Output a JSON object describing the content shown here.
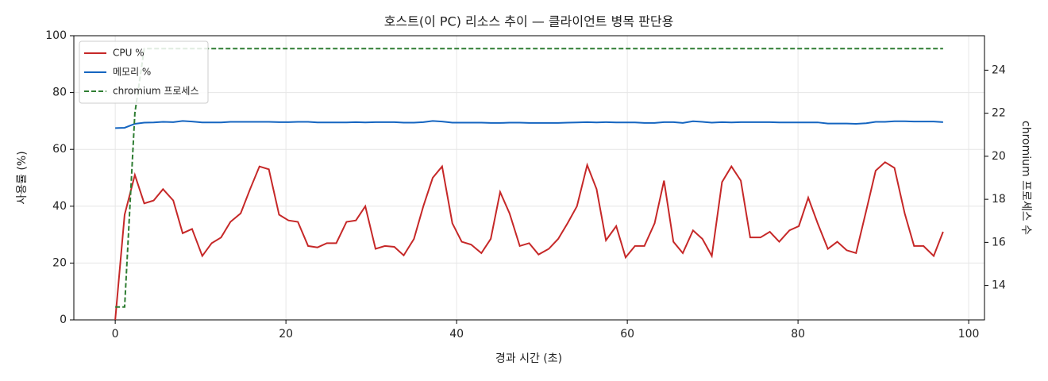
{
  "chart_data": {
    "type": "line",
    "title": "호스트(이 PC) 리소스 추이 — 클라이언트 병목 판단용",
    "x_label": "경과 시간 (초)",
    "y_label": "사용률 (%)",
    "y2_label": "chromium 프로세스 수",
    "x": [
      0,
      1.1,
      2.3,
      3.4,
      4.5,
      5.6,
      6.8,
      7.9,
      9.0,
      10.2,
      11.3,
      12.4,
      13.5,
      14.7,
      15.8,
      16.9,
      18.0,
      19.2,
      20.3,
      21.4,
      22.6,
      23.7,
      24.8,
      25.9,
      27.1,
      28.2,
      29.3,
      30.5,
      31.6,
      32.7,
      33.8,
      35.0,
      36.1,
      37.2,
      38.3,
      39.5,
      40.6,
      41.7,
      42.9,
      44.0,
      45.1,
      46.2,
      47.4,
      48.5,
      49.6,
      50.8,
      51.9,
      53.0,
      54.1,
      55.3,
      56.4,
      57.5,
      58.7,
      59.8,
      60.9,
      62.0,
      63.2,
      64.3,
      65.4,
      66.5,
      67.7,
      68.8,
      69.9,
      71.1,
      72.2,
      73.3,
      74.4,
      75.6,
      76.7,
      77.8,
      79.0,
      80.1,
      81.2,
      82.3,
      83.5,
      84.6,
      85.7,
      86.8,
      88.0,
      89.1,
      90.2,
      91.3,
      92.5,
      93.6,
      94.7,
      95.9,
      97.0
    ],
    "series": [
      {
        "name": "CPU %",
        "color": "#c62828",
        "dash": false,
        "values": [
          0,
          37,
          51,
          41,
          42,
          46,
          42,
          30.5,
          32,
          22.5,
          27,
          29,
          34.5,
          37.5,
          46,
          54,
          53,
          37,
          35,
          34.5,
          26,
          25.5,
          27,
          27,
          34.5,
          35,
          40,
          25,
          26,
          25.7,
          22.7,
          28.5,
          40,
          50,
          54,
          34,
          27.5,
          26.5,
          23.5,
          28.5,
          45,
          37.5,
          26,
          27,
          23,
          25,
          28.5,
          34,
          40,
          54.5,
          46,
          28,
          33,
          22,
          26,
          26,
          34,
          49,
          27.5,
          23.5,
          31.5,
          28.5,
          22.5,
          48.5,
          54,
          49,
          29,
          29,
          31,
          27.5,
          31.5,
          33,
          43,
          34,
          25,
          27.5,
          24.5,
          23.5,
          38.5,
          52.5,
          55.5,
          53.5,
          37.5,
          26,
          26,
          22.5,
          31
        ]
      },
      {
        "name": "메모리 %",
        "color": "#1565c0",
        "dash": false,
        "values": [
          67.5,
          67.6,
          69,
          69.4,
          69.5,
          69.7,
          69.6,
          70,
          69.8,
          69.5,
          69.5,
          69.5,
          69.7,
          69.7,
          69.7,
          69.7,
          69.7,
          69.6,
          69.6,
          69.7,
          69.7,
          69.5,
          69.5,
          69.5,
          69.5,
          69.6,
          69.5,
          69.6,
          69.6,
          69.6,
          69.4,
          69.4,
          69.6,
          70,
          69.8,
          69.4,
          69.4,
          69.4,
          69.4,
          69.3,
          69.3,
          69.4,
          69.4,
          69.3,
          69.3,
          69.3,
          69.3,
          69.4,
          69.5,
          69.6,
          69.5,
          69.6,
          69.5,
          69.5,
          69.5,
          69.3,
          69.3,
          69.6,
          69.6,
          69.3,
          69.9,
          69.7,
          69.4,
          69.6,
          69.5,
          69.6,
          69.6,
          69.6,
          69.6,
          69.5,
          69.5,
          69.5,
          69.5,
          69.5,
          69.1,
          69.1,
          69.1,
          69,
          69.2,
          69.7,
          69.7,
          69.9,
          69.9,
          69.8,
          69.8,
          69.8,
          69.6
        ]
      },
      {
        "name": "chromium 프로세스",
        "color": "#2e7d32",
        "dash": true,
        "axis": "y2",
        "values": [
          13,
          13,
          22,
          25,
          25,
          25,
          25,
          25,
          25,
          25,
          25,
          25,
          25,
          25,
          25,
          25,
          25,
          25,
          25,
          25,
          25,
          25,
          25,
          25,
          25,
          25,
          25,
          25,
          25,
          25,
          25,
          25,
          25,
          25,
          25,
          25,
          25,
          25,
          25,
          25,
          25,
          25,
          25,
          25,
          25,
          25,
          25,
          25,
          25,
          25,
          25,
          25,
          25,
          25,
          25,
          25,
          25,
          25,
          25,
          25,
          25,
          25,
          25,
          25,
          25,
          25,
          25,
          25,
          25,
          25,
          25,
          25,
          25,
          25,
          25,
          25,
          25,
          25,
          25,
          25,
          25,
          25,
          25,
          25,
          25,
          25,
          25
        ]
      }
    ],
    "xlim": [
      -4.85,
      101.85
    ],
    "xticks": [
      0,
      20,
      40,
      60,
      80,
      100
    ],
    "ylim": [
      0,
      100
    ],
    "yticks": [
      0,
      20,
      40,
      60,
      80,
      100
    ],
    "y2lim": [
      12.4,
      25.6
    ],
    "y2ticks": [
      14,
      16,
      18,
      20,
      22,
      24
    ],
    "grid": true,
    "legend": "upper-left"
  }
}
